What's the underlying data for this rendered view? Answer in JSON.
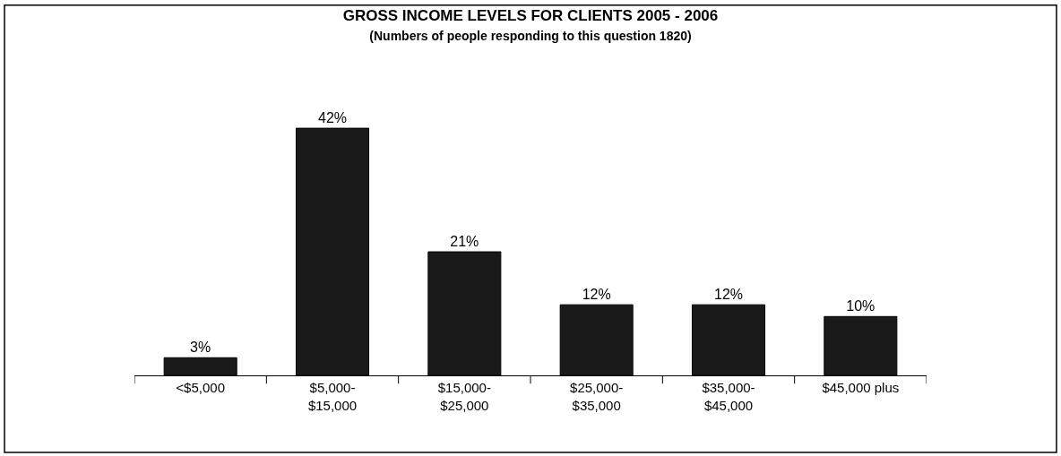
{
  "chart_data": {
    "type": "bar",
    "title": "GROSS INCOME LEVELS FOR CLIENTS 2005 - 2006",
    "subtitle": "(Numbers of people responding to this question 1820)",
    "categories": [
      "<$5,000",
      "$5,000-\n$15,000",
      "$15,000-\n$25,000",
      "$25,000-\n$35,000",
      "$35,000-\n$45,000",
      "$45,000 plus"
    ],
    "values": [
      3,
      42,
      21,
      12,
      12,
      10
    ],
    "value_labels": [
      "3%",
      "42%",
      "21%",
      "12%",
      "12%",
      "10%"
    ],
    "color": "#1a1a1a"
  }
}
